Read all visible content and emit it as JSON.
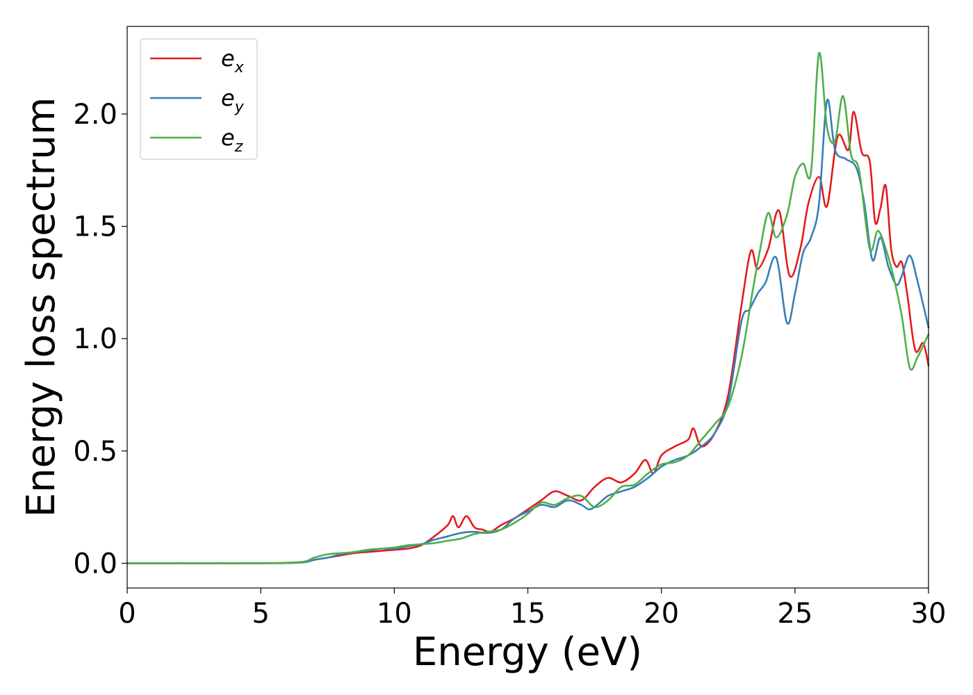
{
  "chart_data": {
    "type": "line",
    "xlabel": "Energy (eV)",
    "ylabel": "Energy loss spectrum",
    "xlim": [
      0,
      30
    ],
    "ylim": [
      -0.11,
      2.39
    ],
    "xticks": [
      "0",
      "5",
      "10",
      "15",
      "20",
      "25",
      "30"
    ],
    "yticks": [
      "0.0",
      "0.5",
      "1.0",
      "1.5",
      "2.0"
    ],
    "grid": false,
    "legend_position": "top-left",
    "series": [
      {
        "name": "e",
        "subscript": "x",
        "color": "#e41a1c",
        "x": [
          0,
          5,
          6.5,
          7,
          7.5,
          8,
          8.5,
          9,
          9.5,
          10,
          10.5,
          11,
          11.5,
          12,
          12.2,
          12.4,
          12.7,
          13,
          13.3,
          13.6,
          14,
          14.5,
          15,
          15.5,
          16,
          16.5,
          17,
          17.5,
          18,
          18.5,
          19,
          19.4,
          19.7,
          20,
          20.5,
          21,
          21.2,
          21.5,
          22,
          22.5,
          23,
          23.35,
          23.6,
          24,
          24.4,
          24.8,
          25.2,
          25.5,
          25.9,
          26.2,
          26.6,
          27.0,
          27.2,
          27.5,
          27.8,
          28.0,
          28.2,
          28.4,
          28.6,
          28.8,
          29.0,
          29.2,
          29.5,
          29.8,
          30
        ],
        "y": [
          0,
          0,
          0.005,
          0.015,
          0.025,
          0.035,
          0.045,
          0.05,
          0.055,
          0.06,
          0.065,
          0.08,
          0.12,
          0.17,
          0.21,
          0.16,
          0.21,
          0.16,
          0.15,
          0.14,
          0.17,
          0.2,
          0.24,
          0.28,
          0.32,
          0.3,
          0.28,
          0.34,
          0.38,
          0.36,
          0.4,
          0.46,
          0.4,
          0.48,
          0.52,
          0.55,
          0.6,
          0.52,
          0.58,
          0.75,
          1.15,
          1.39,
          1.31,
          1.4,
          1.57,
          1.28,
          1.4,
          1.6,
          1.72,
          1.59,
          1.9,
          1.84,
          2.01,
          1.83,
          1.79,
          1.52,
          1.58,
          1.68,
          1.4,
          1.32,
          1.34,
          1.2,
          0.95,
          0.98,
          0.88
        ]
      },
      {
        "name": "e",
        "subscript": "y",
        "color": "#377eb8",
        "x": [
          0,
          5,
          6.5,
          7,
          7.5,
          8,
          8.5,
          9,
          9.5,
          10,
          10.5,
          11,
          11.5,
          12,
          12.5,
          13,
          13.5,
          14,
          14.5,
          15,
          15.5,
          16,
          16.5,
          17,
          17.3,
          17.6,
          18,
          18.5,
          19,
          19.5,
          20,
          20.5,
          21,
          21.5,
          22,
          22.5,
          23,
          23.3,
          23.6,
          23.9,
          24.3,
          24.7,
          25.0,
          25.3,
          25.6,
          25.9,
          26.2,
          26.5,
          26.9,
          27.3,
          27.6,
          27.9,
          28.2,
          28.5,
          28.8,
          29.0,
          29.3,
          29.6,
          30
        ],
        "y": [
          0,
          0,
          0.003,
          0.015,
          0.025,
          0.04,
          0.05,
          0.055,
          0.065,
          0.065,
          0.075,
          0.085,
          0.105,
          0.12,
          0.135,
          0.14,
          0.135,
          0.15,
          0.2,
          0.23,
          0.26,
          0.25,
          0.28,
          0.26,
          0.24,
          0.26,
          0.3,
          0.32,
          0.34,
          0.38,
          0.43,
          0.46,
          0.48,
          0.52,
          0.58,
          0.72,
          1.08,
          1.13,
          1.2,
          1.25,
          1.36,
          1.07,
          1.2,
          1.38,
          1.45,
          1.6,
          2.06,
          1.84,
          1.8,
          1.76,
          1.6,
          1.35,
          1.45,
          1.32,
          1.24,
          1.28,
          1.37,
          1.25,
          1.05
        ]
      },
      {
        "name": "e",
        "subscript": "z",
        "color": "#4daf4a",
        "x": [
          0,
          5,
          6.5,
          7,
          7.5,
          8,
          8.5,
          9,
          9.5,
          10,
          10.5,
          11,
          11.5,
          12,
          12.5,
          13,
          13.5,
          14,
          14.5,
          15,
          15.5,
          16,
          16.5,
          17,
          17.5,
          18,
          18.5,
          19,
          19.5,
          20,
          20.5,
          21,
          21.5,
          22,
          22.5,
          23,
          23.4,
          23.7,
          24.0,
          24.3,
          24.7,
          25.0,
          25.3,
          25.6,
          25.9,
          26.2,
          26.5,
          26.8,
          27.1,
          27.4,
          27.8,
          28.1,
          28.4,
          28.7,
          29.0,
          29.3,
          29.6,
          30
        ],
        "y": [
          0,
          0,
          0.005,
          0.025,
          0.04,
          0.045,
          0.05,
          0.06,
          0.065,
          0.07,
          0.08,
          0.085,
          0.09,
          0.1,
          0.11,
          0.13,
          0.14,
          0.15,
          0.18,
          0.22,
          0.27,
          0.26,
          0.29,
          0.3,
          0.25,
          0.28,
          0.34,
          0.35,
          0.4,
          0.44,
          0.45,
          0.48,
          0.55,
          0.62,
          0.7,
          0.92,
          1.2,
          1.4,
          1.56,
          1.45,
          1.55,
          1.72,
          1.78,
          1.74,
          2.27,
          1.94,
          1.88,
          2.08,
          1.82,
          1.75,
          1.4,
          1.48,
          1.4,
          1.27,
          1.1,
          0.87,
          0.92,
          1.02
        ]
      }
    ]
  }
}
